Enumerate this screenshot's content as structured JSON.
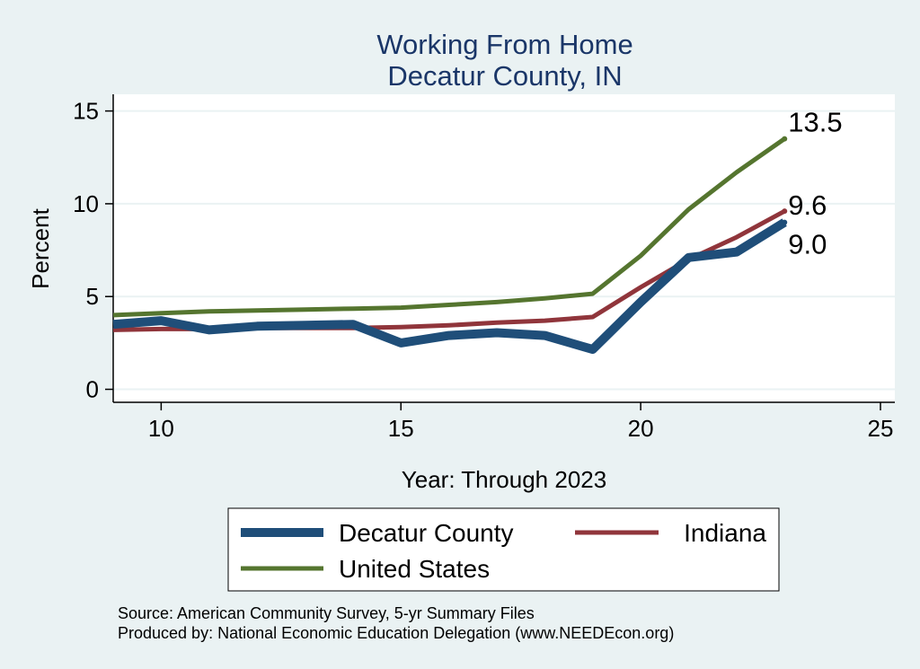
{
  "chart_data": {
    "type": "line",
    "title": "Working From Home",
    "subtitle": "Decatur County, IN",
    "xlabel": "Year: Through 2023",
    "ylabel": "Percent",
    "xlim": [
      9,
      25.3
    ],
    "ylim": [
      -0.7,
      15.9
    ],
    "xticks": [
      "10",
      "15",
      "20",
      "25"
    ],
    "yticks": [
      "0",
      "5",
      "10",
      "15"
    ],
    "x": [
      9,
      10,
      11,
      12,
      13,
      14,
      15,
      16,
      17,
      18,
      19,
      20,
      21,
      22,
      23
    ],
    "series": [
      {
        "name": "Decatur County",
        "color": "#1f4e79",
        "values": [
          3.5,
          3.7,
          3.2,
          3.4,
          3.45,
          3.5,
          2.5,
          2.9,
          3.05,
          2.9,
          2.15,
          4.7,
          7.1,
          7.4,
          9.0
        ],
        "end_label": "9.0"
      },
      {
        "name": "Indiana",
        "color": "#90353b",
        "values": [
          3.2,
          3.25,
          3.25,
          3.3,
          3.3,
          3.3,
          3.35,
          3.45,
          3.6,
          3.7,
          3.9,
          5.5,
          7.0,
          8.2,
          9.6
        ],
        "end_label": "9.6"
      },
      {
        "name": "United States",
        "color": "#55752f",
        "values": [
          4.0,
          4.1,
          4.2,
          4.25,
          4.3,
          4.35,
          4.4,
          4.55,
          4.7,
          4.9,
          5.15,
          7.2,
          9.7,
          11.7,
          13.5
        ],
        "end_label": "13.5"
      }
    ],
    "legend": {
      "position": "bottom",
      "entries": [
        "Decatur County",
        "Indiana",
        "United States"
      ]
    },
    "source": "Source: American Community Survey, 5-yr Summary Files",
    "produced_by": "Produced by: National Economic Education Delegation (www.NEEDEcon.org)",
    "background": "#eaf2f3",
    "plot_background": "#ffffff",
    "title_color": "#1a3668"
  }
}
